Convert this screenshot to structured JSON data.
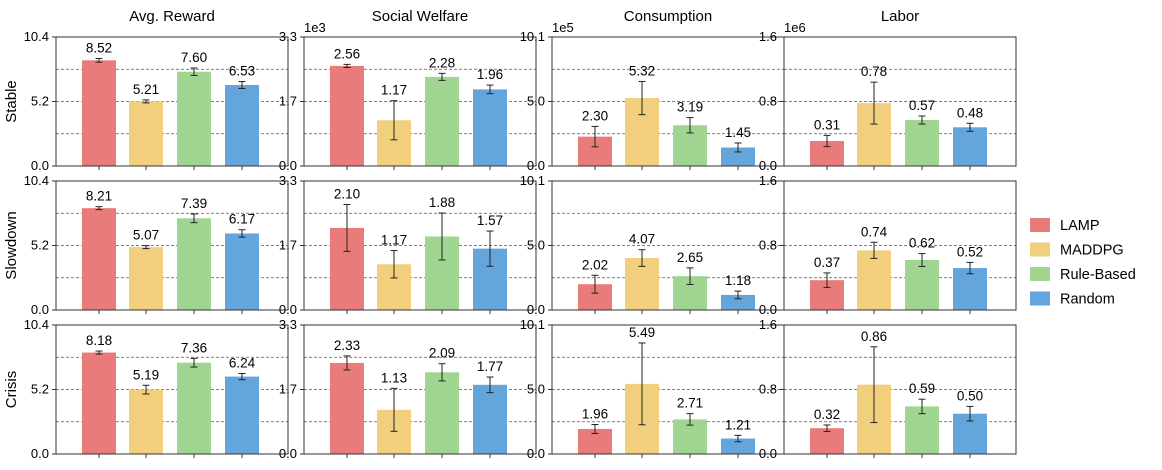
{
  "legend": [
    "LAMP",
    "MADDPG",
    "Rule-Based",
    "Random"
  ],
  "colors": {
    "LAMP": "#ea7b7b",
    "MADDPG": "#f2cf7c",
    "Rule-Based": "#9fd591",
    "Random": "#64a5dc"
  },
  "columns": [
    "Avg. Reward",
    "Social Welfare",
    "Consumption",
    "Labor"
  ],
  "rows": [
    "Stable",
    "Slowdown",
    "Crisis"
  ],
  "chart_data": [
    {
      "type": "bar",
      "title": "Avg. Reward",
      "row": "Stable",
      "multiplier": "",
      "ylim": [
        0,
        10.4
      ],
      "ticks": [
        "0.0",
        "5.2",
        "10.4"
      ],
      "categories": [
        "LAMP",
        "MADDPG",
        "Rule-Based",
        "Random"
      ],
      "values": [
        8.52,
        5.21,
        7.6,
        6.53
      ],
      "errors": [
        0.15,
        0.12,
        0.3,
        0.28
      ],
      "labels": [
        "8.52",
        "5.21",
        "7.60",
        "6.53"
      ]
    },
    {
      "type": "bar",
      "title": "Social Welfare",
      "row": "Stable",
      "multiplier": "1e3",
      "ylim": [
        0,
        3.3
      ],
      "ticks": [
        "0.0",
        "1.7",
        "3.3"
      ],
      "categories": [
        "LAMP",
        "MADDPG",
        "Rule-Based",
        "Random"
      ],
      "values": [
        2.56,
        1.17,
        2.28,
        1.96
      ],
      "errors": [
        0.04,
        0.5,
        0.09,
        0.11
      ],
      "labels": [
        "2.56",
        "1.17",
        "2.28",
        "1.96"
      ]
    },
    {
      "type": "bar",
      "title": "Consumption",
      "row": "Stable",
      "multiplier": "1e5",
      "ylim": [
        0,
        10.1
      ],
      "ticks": [
        "0.0",
        "5.0",
        "10.1"
      ],
      "categories": [
        "LAMP",
        "MADDPG",
        "Rule-Based",
        "Random"
      ],
      "values": [
        2.3,
        5.32,
        3.19,
        1.45
      ],
      "errors": [
        0.8,
        1.3,
        0.6,
        0.35
      ],
      "labels": [
        "2.30",
        "5.32",
        "3.19",
        "1.45"
      ]
    },
    {
      "type": "bar",
      "title": "Labor",
      "row": "Stable",
      "multiplier": "1e6",
      "ylim": [
        0,
        1.6
      ],
      "ticks": [
        "0.0",
        "0.8",
        "1.6"
      ],
      "categories": [
        "LAMP",
        "MADDPG",
        "Rule-Based",
        "Random"
      ],
      "values": [
        0.31,
        0.78,
        0.57,
        0.48
      ],
      "errors": [
        0.07,
        0.26,
        0.05,
        0.05
      ],
      "labels": [
        "0.31",
        "0.78",
        "0.57",
        "0.48"
      ]
    },
    {
      "type": "bar",
      "title": "Avg. Reward",
      "row": "Slowdown",
      "multiplier": "",
      "ylim": [
        0,
        10.4
      ],
      "ticks": [
        "0.0",
        "5.2",
        "10.4"
      ],
      "categories": [
        "LAMP",
        "MADDPG",
        "Rule-Based",
        "Random"
      ],
      "values": [
        8.21,
        5.07,
        7.39,
        6.17
      ],
      "errors": [
        0.12,
        0.12,
        0.35,
        0.3
      ],
      "labels": [
        "8.21",
        "5.07",
        "7.39",
        "6.17"
      ]
    },
    {
      "type": "bar",
      "title": "Social Welfare",
      "row": "Slowdown",
      "multiplier": "",
      "ylim": [
        0,
        3.3
      ],
      "ticks": [
        "0.0",
        "1.7",
        "3.3"
      ],
      "categories": [
        "LAMP",
        "MADDPG",
        "Rule-Based",
        "Random"
      ],
      "values": [
        2.1,
        1.17,
        1.88,
        1.57
      ],
      "errors": [
        0.6,
        0.35,
        0.6,
        0.45
      ],
      "labels": [
        "2.10",
        "1.17",
        "1.88",
        "1.57"
      ]
    },
    {
      "type": "bar",
      "title": "Consumption",
      "row": "Slowdown",
      "multiplier": "",
      "ylim": [
        0,
        10.1
      ],
      "ticks": [
        "0.0",
        "5.0",
        "10.1"
      ],
      "categories": [
        "LAMP",
        "MADDPG",
        "Rule-Based",
        "Random"
      ],
      "values": [
        2.02,
        4.07,
        2.65,
        1.18
      ],
      "errors": [
        0.7,
        0.65,
        0.65,
        0.3
      ],
      "labels": [
        "2.02",
        "4.07",
        "2.65",
        "1.18"
      ]
    },
    {
      "type": "bar",
      "title": "Labor",
      "row": "Slowdown",
      "multiplier": "",
      "ylim": [
        0,
        1.6
      ],
      "ticks": [
        "0.0",
        "0.8",
        "1.6"
      ],
      "categories": [
        "LAMP",
        "MADDPG",
        "Rule-Based",
        "Random"
      ],
      "values": [
        0.37,
        0.74,
        0.62,
        0.52
      ],
      "errors": [
        0.09,
        0.1,
        0.08,
        0.07
      ],
      "labels": [
        "0.37",
        "0.74",
        "0.62",
        "0.52"
      ]
    },
    {
      "type": "bar",
      "title": "Avg. Reward",
      "row": "Crisis",
      "multiplier": "",
      "ylim": [
        0,
        10.4
      ],
      "ticks": [
        "0.0",
        "5.2",
        "10.4"
      ],
      "categories": [
        "LAMP",
        "MADDPG",
        "Rule-Based",
        "Random"
      ],
      "values": [
        8.18,
        5.19,
        7.36,
        6.24
      ],
      "errors": [
        0.12,
        0.35,
        0.35,
        0.25
      ],
      "labels": [
        "8.18",
        "5.19",
        "7.36",
        "6.24"
      ]
    },
    {
      "type": "bar",
      "title": "Social Welfare",
      "row": "Crisis",
      "multiplier": "",
      "ylim": [
        0,
        3.3
      ],
      "ticks": [
        "0.0",
        "1.7",
        "3.3"
      ],
      "categories": [
        "LAMP",
        "MADDPG",
        "Rule-Based",
        "Random"
      ],
      "values": [
        2.33,
        1.13,
        2.09,
        1.77
      ],
      "errors": [
        0.18,
        0.55,
        0.22,
        0.2
      ],
      "labels": [
        "2.33",
        "1.13",
        "2.09",
        "1.77"
      ]
    },
    {
      "type": "bar",
      "title": "Consumption",
      "row": "Crisis",
      "multiplier": "",
      "ylim": [
        0,
        10.1
      ],
      "ticks": [
        "0.0",
        "5.0",
        "10.1"
      ],
      "categories": [
        "LAMP",
        "MADDPG",
        "Rule-Based",
        "Random"
      ],
      "values": [
        1.96,
        5.49,
        2.71,
        1.21
      ],
      "errors": [
        0.35,
        3.2,
        0.45,
        0.25
      ],
      "labels": [
        "1.96",
        "5.49",
        "2.71",
        "1.21"
      ]
    },
    {
      "type": "bar",
      "title": "Labor",
      "row": "Crisis",
      "multiplier": "",
      "ylim": [
        0,
        1.6
      ],
      "ticks": [
        "0.0",
        "0.8",
        "1.6"
      ],
      "categories": [
        "LAMP",
        "MADDPG",
        "Rule-Based",
        "Random"
      ],
      "values": [
        0.32,
        0.86,
        0.59,
        0.5
      ],
      "errors": [
        0.04,
        0.47,
        0.09,
        0.09
      ],
      "labels": [
        "0.32",
        "0.86",
        "0.59",
        "0.50"
      ]
    }
  ]
}
